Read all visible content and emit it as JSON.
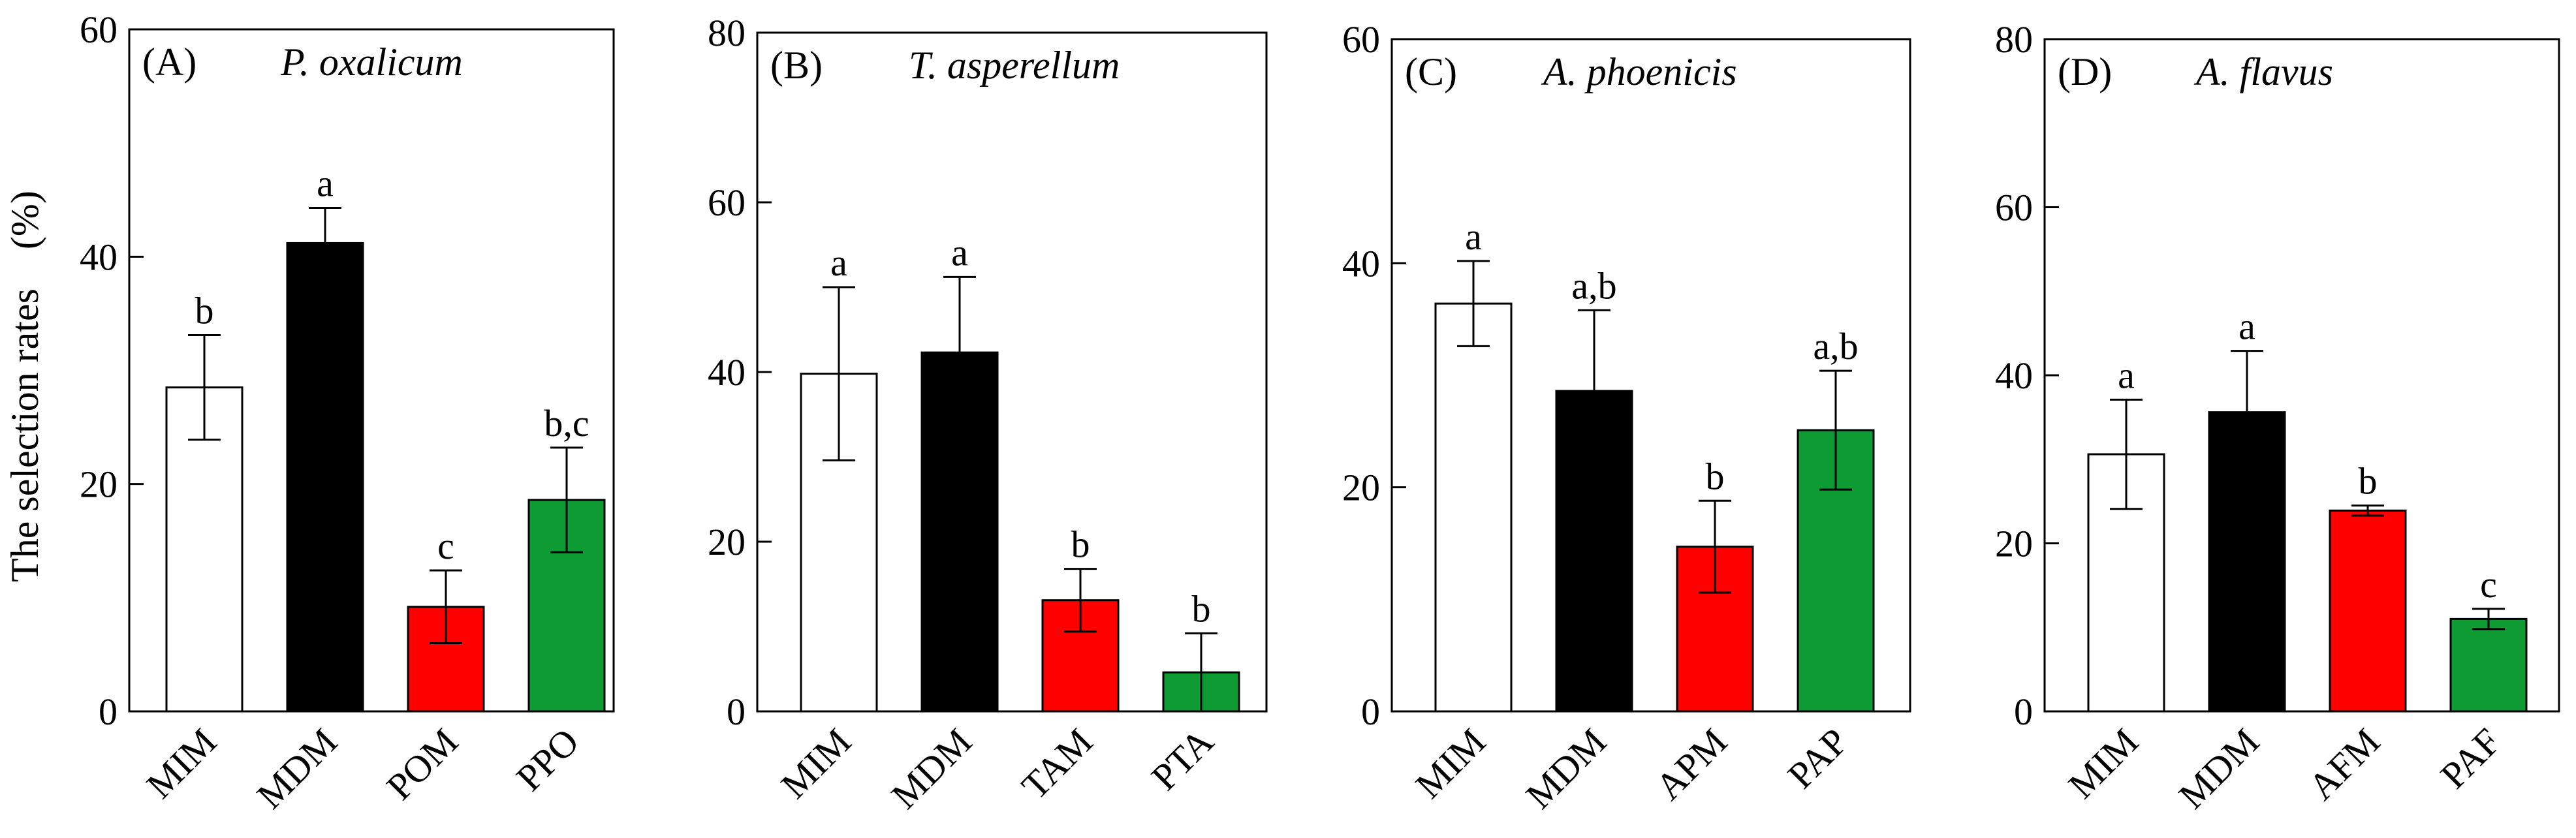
{
  "chart_data": {
    "type": "bar",
    "y_axis_title": "The selection rates　(%)",
    "panels": [
      {
        "letter": "(A)",
        "title": "P. oxalicum",
        "ylim": [
          0,
          60
        ],
        "yticks": [
          "0",
          "20",
          "40",
          "60"
        ],
        "categories": [
          "MIM",
          "MDM",
          "POM",
          "PPO"
        ],
        "values": [
          28.5,
          41.2,
          9.2,
          18.6
        ],
        "errors": [
          4.6,
          3.1,
          3.2,
          4.6
        ],
        "significance": [
          "b",
          "a",
          "c",
          "b,c"
        ],
        "colors": [
          "#ffffff",
          "#000000",
          "#ff0000",
          "#0f9b34"
        ]
      },
      {
        "letter": "(B)",
        "title": "T. asperellum",
        "ylim": [
          0,
          80
        ],
        "yticks": [
          "0",
          "20",
          "40",
          "60",
          "80"
        ],
        "categories": [
          "MIM",
          "MDM",
          "TAM",
          "PTA"
        ],
        "values": [
          39.8,
          42.3,
          13.1,
          4.6
        ],
        "errors": [
          10.2,
          8.9,
          3.7,
          4.6
        ],
        "significance": [
          "a",
          "a",
          "b",
          "b"
        ],
        "colors": [
          "#ffffff",
          "#000000",
          "#ff0000",
          "#0f9b34"
        ]
      },
      {
        "letter": "(C)",
        "title": "A. phoenicis",
        "ylim": [
          0,
          60
        ],
        "yticks": [
          "0",
          "20",
          "40",
          "60"
        ],
        "categories": [
          "MIM",
          "MDM",
          "APM",
          "PAP"
        ],
        "values": [
          36.4,
          28.6,
          14.7,
          25.1
        ],
        "errors": [
          3.8,
          7.2,
          4.1,
          5.3
        ],
        "significance": [
          "a",
          "a,b",
          "b",
          "a,b"
        ],
        "colors": [
          "#ffffff",
          "#000000",
          "#ff0000",
          "#0f9b34"
        ]
      },
      {
        "letter": "(D)",
        "title": "A. flavus",
        "ylim": [
          0,
          80
        ],
        "yticks": [
          "0",
          "20",
          "40",
          "60",
          "80"
        ],
        "categories": [
          "MIM",
          "MDM",
          "AFM",
          "PAF"
        ],
        "values": [
          30.6,
          35.6,
          23.9,
          11.0
        ],
        "errors": [
          6.5,
          7.3,
          0.6,
          1.2
        ],
        "significance": [
          "a",
          "a",
          "b",
          "c"
        ],
        "colors": [
          "#ffffff",
          "#000000",
          "#ff0000",
          "#0f9b34"
        ]
      }
    ]
  }
}
